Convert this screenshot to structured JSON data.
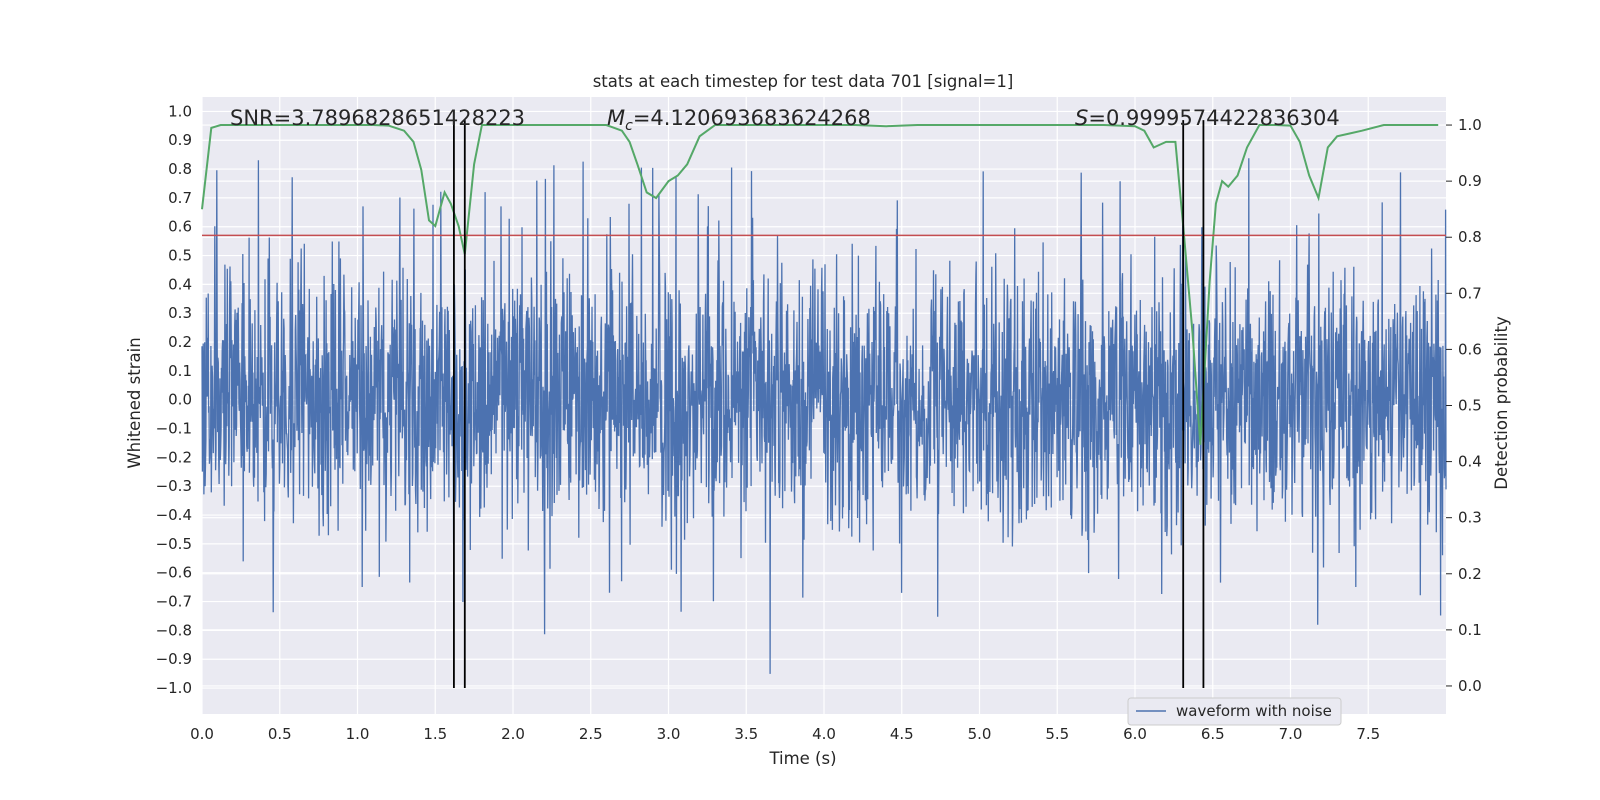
{
  "chart_data": {
    "type": "line",
    "title": "stats at each timestep for test data 701 [signal=1]",
    "xlabel": "Time (s)",
    "ylabel": "Whitened strain",
    "y2label": "Detection probability",
    "xlim": [
      0.0,
      8.0
    ],
    "ylim": [
      -1.09,
      1.05
    ],
    "y2lim": [
      -0.05,
      1.05
    ],
    "xticks": [
      "0.0",
      "0.5",
      "1.0",
      "1.5",
      "2.0",
      "2.5",
      "3.0",
      "3.5",
      "4.0",
      "4.5",
      "5.0",
      "5.5",
      "6.0",
      "6.5",
      "7.0",
      "7.5"
    ],
    "yticks": [
      "1.0",
      "0.9",
      "0.8",
      "0.7",
      "0.6",
      "0.5",
      "0.4",
      "0.3",
      "0.2",
      "0.1",
      "0.0",
      "-0.1",
      "-0.2",
      "-0.3",
      "-0.4",
      "-0.5",
      "-0.6",
      "-0.7",
      "-0.8",
      "-0.9",
      "-1.0"
    ],
    "y2ticks": [
      "1.0",
      "0.9",
      "0.8",
      "0.7",
      "0.6",
      "0.5",
      "0.4",
      "0.3",
      "0.2",
      "0.1",
      "0.0"
    ],
    "grid": true,
    "annotations": {
      "snr": "SNR=3.7896828651428223",
      "mc_symbol": "M",
      "mc_sub": "c",
      "mc_value": "=4.120693683624268",
      "s_symbol": "S",
      "s_value": "=0.9999574422836304"
    },
    "threshold_y": 0.57,
    "vertical_lines_x": [
      1.62,
      1.69,
      6.31,
      6.44
    ],
    "strain_envelope": {
      "x_range": [
        0.0,
        8.0
      ],
      "typical_amplitude": 0.4,
      "max_peak": 0.87,
      "min_trough": -0.99
    },
    "series": [
      {
        "name": "waveform with noise",
        "color": "#4c72b0",
        "description_kind": "dense noisy strain"
      },
      {
        "color": "#55a868",
        "x": [
          0.0,
          0.06,
          0.12,
          0.2,
          0.4,
          0.6,
          0.8,
          1.0,
          1.1,
          1.2,
          1.3,
          1.36,
          1.41,
          1.46,
          1.5,
          1.56,
          1.6,
          1.65,
          1.69,
          1.75,
          1.8,
          1.9,
          2.0,
          2.2,
          2.4,
          2.6,
          2.7,
          2.75,
          2.8,
          2.86,
          2.92,
          3.0,
          3.06,
          3.12,
          3.2,
          3.3,
          3.4,
          3.6,
          3.8,
          4.0,
          4.2,
          4.4,
          4.6,
          4.8,
          5.0,
          5.2,
          5.4,
          5.6,
          5.8,
          6.0,
          6.06,
          6.12,
          6.2,
          6.26,
          6.31,
          6.37,
          6.42,
          6.48,
          6.52,
          6.56,
          6.6,
          6.66,
          6.72,
          6.8,
          6.9,
          7.0,
          7.06,
          7.12,
          7.18,
          7.24,
          7.3,
          7.38,
          7.46,
          7.6,
          7.8,
          7.95
        ],
        "y": [
          0.85,
          0.995,
          1.0,
          1.0,
          1.0,
          1.0,
          1.0,
          1.0,
          1.0,
          0.999,
          0.99,
          0.97,
          0.92,
          0.83,
          0.82,
          0.88,
          0.86,
          0.82,
          0.77,
          0.93,
          1.0,
          1.0,
          1.0,
          1.0,
          1.0,
          1.0,
          0.99,
          0.97,
          0.93,
          0.88,
          0.87,
          0.9,
          0.91,
          0.93,
          0.98,
          1.0,
          1.0,
          1.0,
          1.0,
          1.0,
          1.0,
          0.998,
          1.0,
          1.0,
          1.0,
          1.0,
          1.0,
          1.0,
          1.0,
          0.998,
          0.99,
          0.96,
          0.97,
          0.97,
          0.82,
          0.63,
          0.43,
          0.72,
          0.86,
          0.9,
          0.89,
          0.91,
          0.96,
          1.0,
          1.0,
          0.999,
          0.97,
          0.91,
          0.87,
          0.96,
          0.98,
          0.985,
          0.99,
          1.0,
          1.0,
          1.0
        ]
      }
    ],
    "legend": {
      "placement": "lower-right",
      "entries": [
        "waveform with noise"
      ]
    },
    "colors": {
      "background": "#eaeaf2",
      "grid": "#ffffff",
      "strain": "#4c72b0",
      "probability": "#55a868",
      "threshold": "#c44e52",
      "vlines": "#000000"
    }
  }
}
